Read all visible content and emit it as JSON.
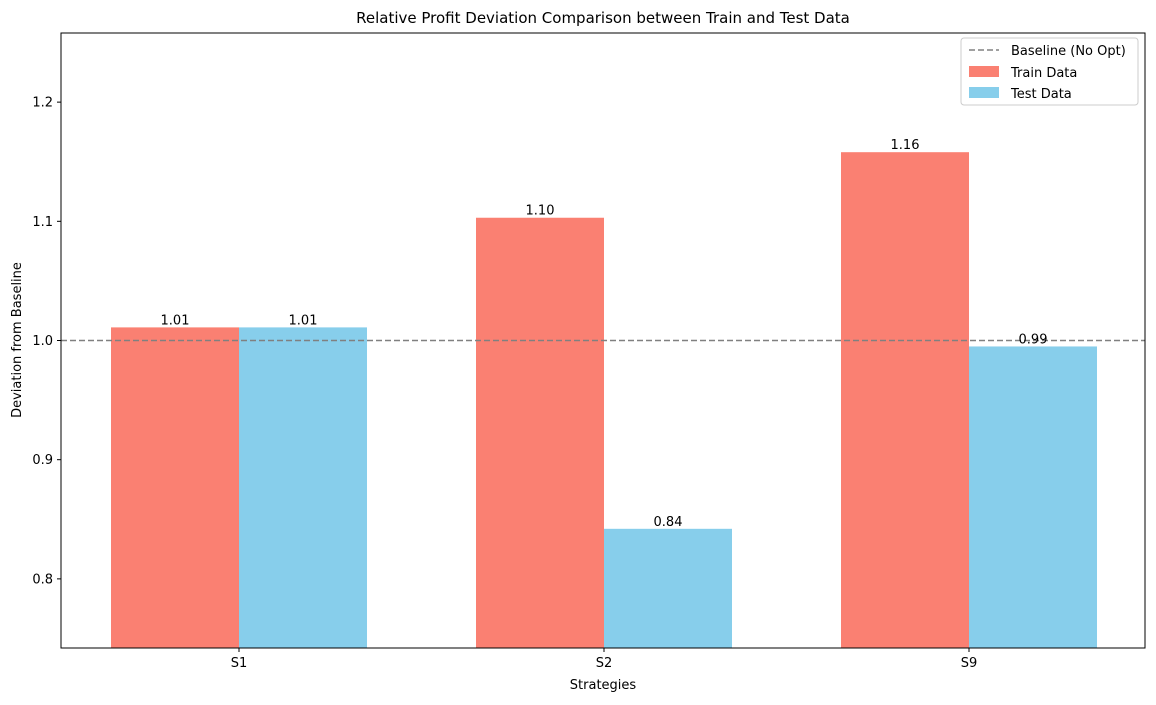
{
  "chart_data": {
    "type": "bar",
    "title": "Relative Profit Deviation Comparison between Train and Test Data",
    "xlabel": "Strategies",
    "ylabel": "Deviation from Baseline",
    "categories": [
      "S1",
      "S2",
      "S9"
    ],
    "ylim": [
      0.742,
      1.258
    ],
    "yticks": [
      0.8,
      0.9,
      1.0,
      1.1,
      1.2
    ],
    "ytick_labels": [
      "0.8",
      "0.9",
      "1.0",
      "1.1",
      "1.2"
    ],
    "grid": false,
    "legend_position": "top-right",
    "baseline": {
      "name": "Baseline (No Opt)",
      "value": 1.0,
      "style": "dashed",
      "color": "#808080"
    },
    "series": [
      {
        "name": "Train Data",
        "color": "#fa8072",
        "values": [
          1.011,
          1.103,
          1.158
        ],
        "labels": [
          "1.01",
          "1.10",
          "1.16"
        ]
      },
      {
        "name": "Test Data",
        "color": "#87ceeb",
        "values": [
          1.011,
          0.842,
          0.995
        ],
        "labels": [
          "1.01",
          "0.84",
          "0.99"
        ]
      }
    ]
  }
}
